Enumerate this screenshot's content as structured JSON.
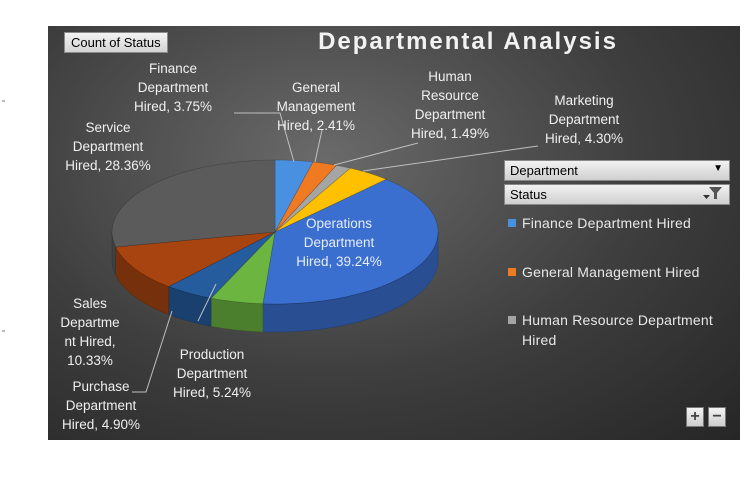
{
  "pivot": {
    "value_field": "Count of Status",
    "filters": [
      {
        "label": "Department",
        "icon": "dropdown-arrow-icon"
      },
      {
        "label": "Status",
        "icon": "filter-icon"
      }
    ],
    "zoom": {
      "plus": "+",
      "minus": "−"
    }
  },
  "chart_data": {
    "type": "pie",
    "title": "Departmental Analysis",
    "legend_position": "right",
    "slices": [
      {
        "label": "Finance Department Hired",
        "value": 3.75,
        "color": "#4a90e0"
      },
      {
        "label": "General Management Hired",
        "value": 2.41,
        "color": "#f07a22"
      },
      {
        "label": "Human Resource Department Hired",
        "value": 1.49,
        "color": "#a5a5a5"
      },
      {
        "label": "Marketing Department Hired",
        "value": 4.3,
        "color": "#ffc000"
      },
      {
        "label": "Operations Department Hired",
        "value": 39.24,
        "color": "#3a6fd0"
      },
      {
        "label": "Production Department Hired",
        "value": 5.24,
        "color": "#6cb540"
      },
      {
        "label": "Purchase Department Hired",
        "value": 4.9,
        "color": "#255c9e"
      },
      {
        "label": "Sales Department Hired",
        "value": 10.33,
        "color": "#a84410"
      },
      {
        "label": "Service Department Hired",
        "value": 28.36,
        "color": "#5b5b5b"
      }
    ],
    "legend": [
      "Finance Department Hired",
      "General Management Hired",
      "Human Resource Department Hired"
    ]
  },
  "data_labels": {
    "finance": [
      "Finance",
      "Department",
      "Hired, 3.75%"
    ],
    "general": [
      "General",
      "Management",
      "Hired, 2.41%"
    ],
    "hr": [
      "Human",
      "Resource",
      "Department",
      "Hired, 1.49%"
    ],
    "marketing": [
      "Marketing",
      "Department",
      "Hired, 4.30%"
    ],
    "service": [
      "Service",
      "Department",
      "Hired, 28.36%"
    ],
    "operations": [
      "Operations",
      "Department",
      "Hired, 39.24%"
    ],
    "sales": [
      "Sales",
      "Departme",
      "nt Hired,",
      "10.33%"
    ],
    "production": [
      "Production",
      "Department",
      "Hired, 5.24%"
    ],
    "purchase": [
      "Purchase",
      "Department",
      "Hired, 4.90%"
    ]
  }
}
